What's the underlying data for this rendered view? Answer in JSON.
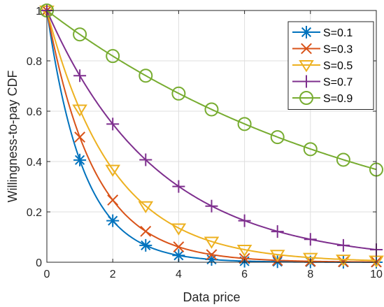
{
  "chart_data": {
    "type": "line",
    "title": "",
    "xlabel": "Data price",
    "ylabel": "Willingness-to-pay CDF",
    "xlim": [
      0,
      10
    ],
    "ylim": [
      0,
      1
    ],
    "xticks": [
      0,
      2,
      4,
      6,
      8,
      10
    ],
    "yticks": [
      0,
      0.2,
      0.4,
      0.6,
      0.8,
      1
    ],
    "xtick_labels": [
      "0",
      "2",
      "4",
      "6",
      "8",
      "10"
    ],
    "ytick_labels": [
      "0",
      "0.2",
      "0.4",
      "0.6",
      "0.8",
      "1"
    ],
    "grid": true,
    "legend_position": "top-right",
    "series": [
      {
        "name": "S=0.1",
        "color": "#0072BD",
        "marker": "asterisk",
        "x": [
          0,
          1,
          2,
          3,
          4,
          5,
          6,
          7,
          8,
          9,
          10
        ],
        "y": [
          1,
          0.406,
          0.165,
          0.067,
          0.027,
          0.011,
          0.004,
          0.002,
          0.001,
          0.0,
          0.0
        ]
      },
      {
        "name": "S=0.3",
        "color": "#D95319",
        "marker": "x",
        "x": [
          0,
          1,
          2,
          3,
          4,
          5,
          6,
          7,
          8,
          9,
          10
        ],
        "y": [
          1,
          0.497,
          0.247,
          0.123,
          0.061,
          0.03,
          0.015,
          0.007,
          0.004,
          0.002,
          0.001
        ]
      },
      {
        "name": "S=0.5",
        "color": "#EDB120",
        "marker": "triangle-down",
        "x": [
          0,
          1,
          2,
          3,
          4,
          5,
          6,
          7,
          8,
          9,
          10
        ],
        "y": [
          1,
          0.607,
          0.368,
          0.223,
          0.135,
          0.082,
          0.05,
          0.03,
          0.018,
          0.011,
          0.007
        ]
      },
      {
        "name": "S=0.7",
        "color": "#7E2F8E",
        "marker": "plus",
        "x": [
          0,
          1,
          2,
          3,
          4,
          5,
          6,
          7,
          8,
          9,
          10
        ],
        "y": [
          1,
          0.741,
          0.549,
          0.407,
          0.301,
          0.223,
          0.165,
          0.122,
          0.091,
          0.067,
          0.05
        ]
      },
      {
        "name": "S=0.9",
        "color": "#77AC30",
        "marker": "circle",
        "x": [
          0,
          1,
          2,
          3,
          4,
          5,
          6,
          7,
          8,
          9,
          10
        ],
        "y": [
          1,
          0.905,
          0.819,
          0.741,
          0.67,
          0.607,
          0.549,
          0.497,
          0.449,
          0.407,
          0.368
        ]
      }
    ]
  }
}
